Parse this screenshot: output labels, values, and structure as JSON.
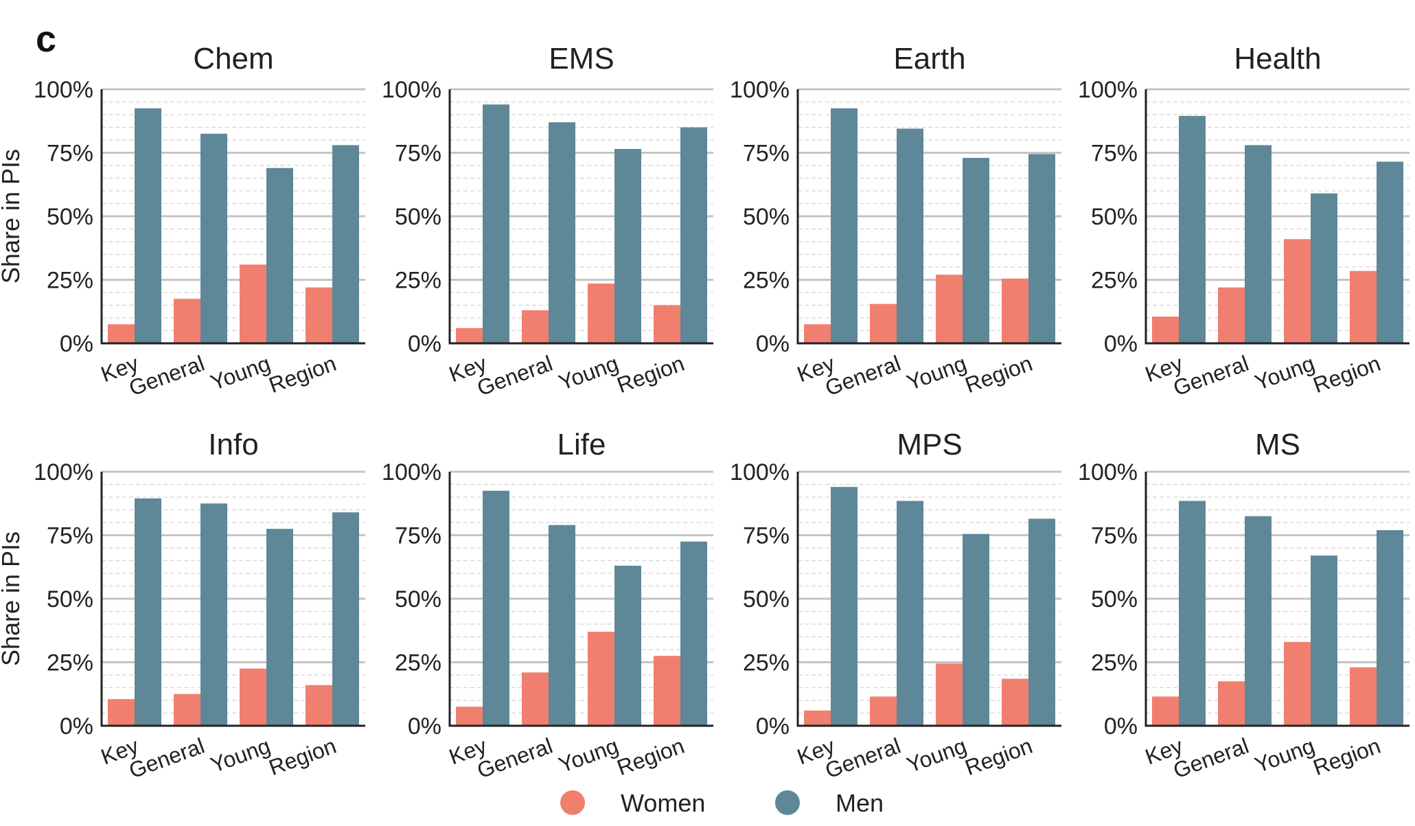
{
  "figure_letter": "c",
  "legend": [
    {
      "label": "Women",
      "color": "#f07f6f"
    },
    {
      "label": "Men",
      "color": "#5e8797"
    }
  ],
  "ylabel": "Share in PIs",
  "chart_data": [
    {
      "type": "bar",
      "title": "Chem",
      "categories": [
        "Key",
        "General",
        "Young",
        "Region"
      ],
      "ylim": [
        0,
        100
      ],
      "yticks": [
        "0%",
        "25%",
        "50%",
        "75%",
        "100%"
      ],
      "grid": true,
      "series": [
        {
          "name": "Women",
          "values": [
            7.5,
            17.5,
            31,
            22
          ]
        },
        {
          "name": "Men",
          "values": [
            92.5,
            82.5,
            69,
            78
          ]
        }
      ]
    },
    {
      "type": "bar",
      "title": "EMS",
      "categories": [
        "Key",
        "General",
        "Young",
        "Region"
      ],
      "ylim": [
        0,
        100
      ],
      "yticks": [
        "0%",
        "25%",
        "50%",
        "75%",
        "100%"
      ],
      "grid": true,
      "series": [
        {
          "name": "Women",
          "values": [
            6,
            13,
            23.5,
            15
          ]
        },
        {
          "name": "Men",
          "values": [
            94,
            87,
            76.5,
            85
          ]
        }
      ]
    },
    {
      "type": "bar",
      "title": "Earth",
      "categories": [
        "Key",
        "General",
        "Young",
        "Region"
      ],
      "ylim": [
        0,
        100
      ],
      "yticks": [
        "0%",
        "25%",
        "50%",
        "75%",
        "100%"
      ],
      "grid": true,
      "series": [
        {
          "name": "Women",
          "values": [
            7.5,
            15.5,
            27,
            25.5
          ]
        },
        {
          "name": "Men",
          "values": [
            92.5,
            84.5,
            73,
            74.5
          ]
        }
      ]
    },
    {
      "type": "bar",
      "title": "Health",
      "categories": [
        "Key",
        "General",
        "Young",
        "Region"
      ],
      "ylim": [
        0,
        100
      ],
      "yticks": [
        "0%",
        "25%",
        "50%",
        "75%",
        "100%"
      ],
      "grid": true,
      "series": [
        {
          "name": "Women",
          "values": [
            10.5,
            22,
            41,
            28.5
          ]
        },
        {
          "name": "Men",
          "values": [
            89.5,
            78,
            59,
            71.5
          ]
        }
      ]
    },
    {
      "type": "bar",
      "title": "Info",
      "categories": [
        "Key",
        "General",
        "Young",
        "Region"
      ],
      "ylim": [
        0,
        100
      ],
      "yticks": [
        "0%",
        "25%",
        "50%",
        "75%",
        "100%"
      ],
      "grid": true,
      "series": [
        {
          "name": "Women",
          "values": [
            10.5,
            12.5,
            22.5,
            16
          ]
        },
        {
          "name": "Men",
          "values": [
            89.5,
            87.5,
            77.5,
            84
          ]
        }
      ]
    },
    {
      "type": "bar",
      "title": "Life",
      "categories": [
        "Key",
        "General",
        "Young",
        "Region"
      ],
      "ylim": [
        0,
        100
      ],
      "yticks": [
        "0%",
        "25%",
        "50%",
        "75%",
        "100%"
      ],
      "grid": true,
      "series": [
        {
          "name": "Women",
          "values": [
            7.5,
            21,
            37,
            27.5
          ]
        },
        {
          "name": "Men",
          "values": [
            92.5,
            79,
            63,
            72.5
          ]
        }
      ]
    },
    {
      "type": "bar",
      "title": "MPS",
      "categories": [
        "Key",
        "General",
        "Young",
        "Region"
      ],
      "ylim": [
        0,
        100
      ],
      "yticks": [
        "0%",
        "25%",
        "50%",
        "75%",
        "100%"
      ],
      "grid": true,
      "series": [
        {
          "name": "Women",
          "values": [
            6,
            11.5,
            24.5,
            18.5
          ]
        },
        {
          "name": "Men",
          "values": [
            94,
            88.5,
            75.5,
            81.5
          ]
        }
      ]
    },
    {
      "type": "bar",
      "title": "MS",
      "categories": [
        "Key",
        "General",
        "Young",
        "Region"
      ],
      "ylim": [
        0,
        100
      ],
      "yticks": [
        "0%",
        "25%",
        "50%",
        "75%",
        "100%"
      ],
      "grid": true,
      "series": [
        {
          "name": "Women",
          "values": [
            11.5,
            17.5,
            33,
            23
          ]
        },
        {
          "name": "Men",
          "values": [
            88.5,
            82.5,
            67,
            77
          ]
        }
      ]
    }
  ]
}
